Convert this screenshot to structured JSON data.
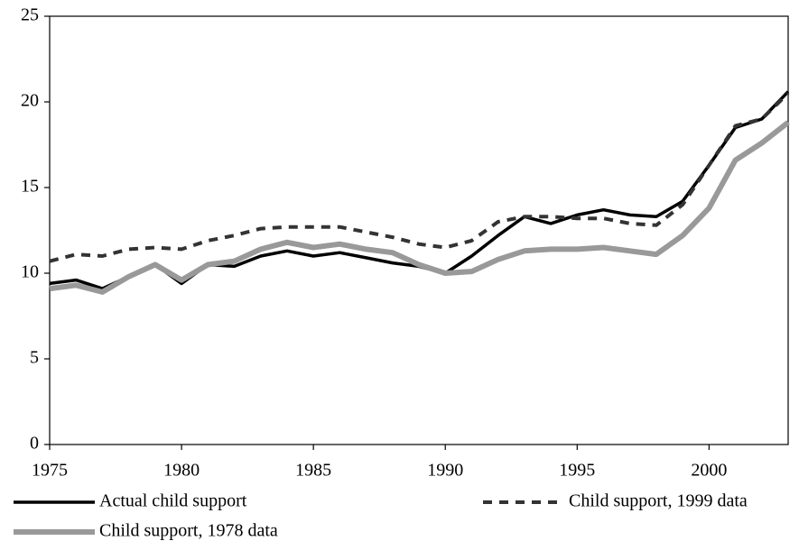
{
  "chart_data": {
    "type": "line",
    "x": [
      1975,
      1976,
      1977,
      1978,
      1979,
      1980,
      1981,
      1982,
      1983,
      1984,
      1985,
      1986,
      1987,
      1988,
      1989,
      1990,
      1991,
      1992,
      1993,
      1994,
      1995,
      1996,
      1997,
      1998,
      1999,
      2000,
      2001,
      2002,
      2003
    ],
    "series": [
      {
        "name": "Actual child support",
        "color": "#000000",
        "style": "solid",
        "values": [
          9.4,
          9.6,
          9.1,
          9.8,
          10.5,
          9.4,
          10.5,
          10.4,
          11.0,
          11.3,
          11.0,
          11.2,
          10.9,
          10.6,
          10.4,
          10.0,
          11.0,
          12.2,
          13.3,
          12.9,
          13.4,
          13.7,
          13.4,
          13.3,
          14.2,
          16.3,
          18.5,
          19.0,
          20.6
        ]
      },
      {
        "name": "Child support, 1999 data",
        "color": "#333333",
        "style": "dashed",
        "values": [
          10.7,
          11.1,
          11.0,
          11.4,
          11.5,
          11.4,
          11.9,
          12.2,
          12.6,
          12.7,
          12.7,
          12.7,
          12.4,
          12.1,
          11.7,
          11.5,
          11.9,
          13.0,
          13.3,
          13.3,
          13.2,
          13.2,
          12.9,
          12.8,
          14.0,
          16.3,
          18.6,
          19.0,
          20.5
        ]
      },
      {
        "name": "Child support, 1978 data",
        "color": "#999999",
        "style": "solid",
        "values": [
          9.1,
          9.3,
          8.9,
          9.8,
          10.5,
          9.6,
          10.5,
          10.7,
          11.4,
          11.8,
          11.5,
          11.7,
          11.4,
          11.2,
          10.5,
          10.0,
          10.1,
          10.8,
          11.3,
          11.4,
          11.4,
          11.5,
          11.3,
          11.1,
          12.2,
          13.8,
          16.6,
          17.6,
          18.8
        ]
      }
    ],
    "xlim": [
      1975,
      2003
    ],
    "xticks": [
      1975,
      1980,
      1985,
      1990,
      1995,
      2000
    ],
    "ylim": [
      0,
      25
    ],
    "yticks": [
      0,
      5,
      10,
      15,
      20,
      25
    ],
    "legend": "bottom"
  }
}
